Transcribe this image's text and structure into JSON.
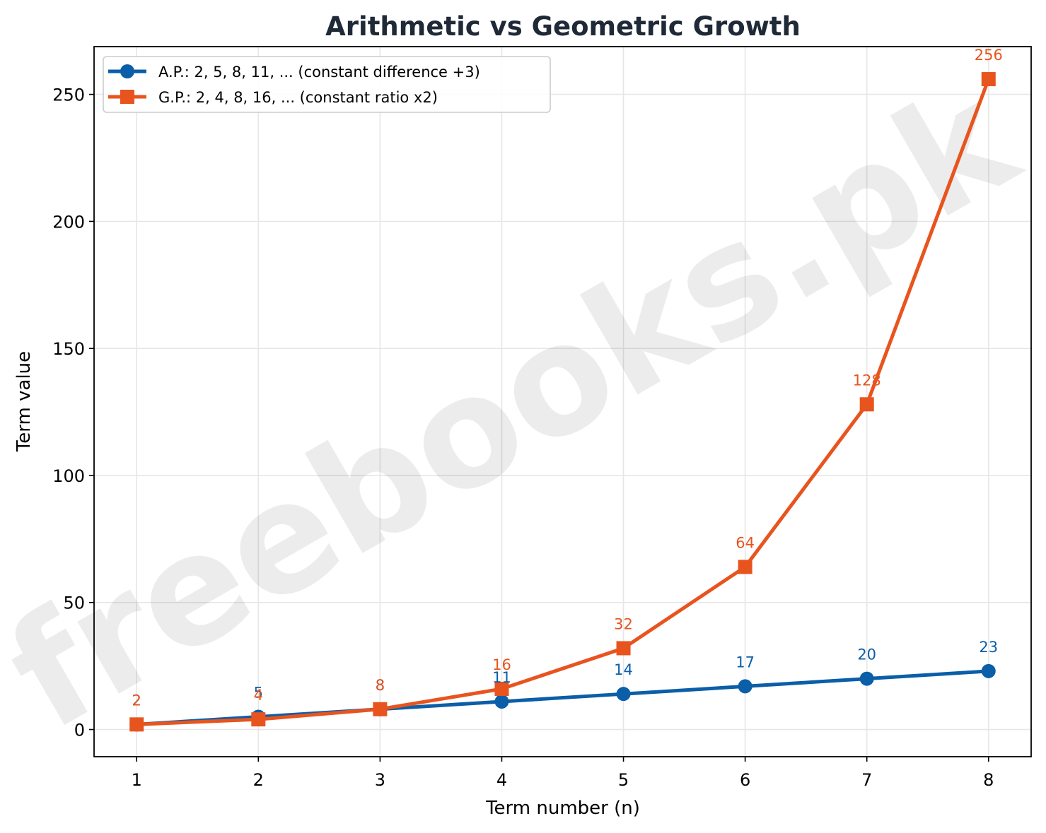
{
  "chart_data": {
    "type": "line",
    "title": "Arithmetic vs Geometric Growth",
    "xlabel": "Term number (n)",
    "ylabel": "Term value",
    "x": [
      1,
      2,
      3,
      4,
      5,
      6,
      7,
      8
    ],
    "xlim": [
      0.65,
      8.35
    ],
    "ylim": [
      -10.7,
      268.8
    ],
    "xticks": [
      1,
      2,
      3,
      4,
      5,
      6,
      7,
      8
    ],
    "yticks": [
      0,
      50,
      100,
      150,
      200,
      250
    ],
    "grid": true,
    "legend_position": "top-left",
    "series": [
      {
        "name": "A.P.: 2, 5, 8, 11, ... (constant difference +3)",
        "values": [
          2,
          5,
          8,
          11,
          14,
          17,
          20,
          23
        ],
        "color": "#0b5ea8",
        "marker": "circle"
      },
      {
        "name": "G.P.: 2, 4, 8, 16, ... (constant ratio x2)",
        "values": [
          2,
          4,
          8,
          16,
          32,
          64,
          128,
          256
        ],
        "color": "#e8541e",
        "marker": "square"
      }
    ],
    "watermark": "freebooks.pk"
  }
}
